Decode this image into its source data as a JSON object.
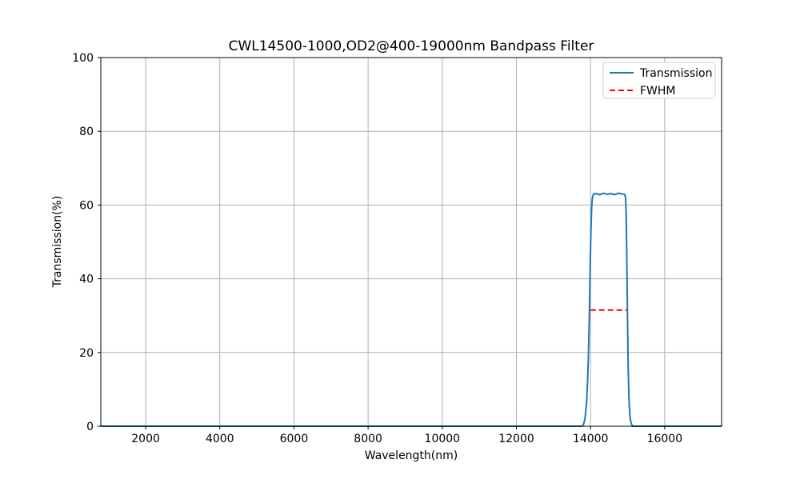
{
  "chart_data": {
    "type": "line",
    "title": "CWL14500-1000,OD2@400-19000nm Bandpass Filter",
    "xlabel": "Wavelength(nm)",
    "ylabel": "Transmission(%)",
    "xlim": [
      790,
      17535
    ],
    "ylim": [
      0,
      100
    ],
    "x_ticks": [
      2000,
      4000,
      6000,
      8000,
      10000,
      12000,
      14000,
      16000
    ],
    "y_ticks": [
      0,
      20,
      40,
      60,
      80,
      100
    ],
    "grid": true,
    "grid_color": "#b0b0b0",
    "spine_color": "#000000",
    "legend_position": "upper right",
    "series": [
      {
        "name": "Transmission",
        "color": "#1f77b4",
        "style": "solid",
        "points": [
          [
            790,
            0
          ],
          [
            6000,
            0
          ],
          [
            10000,
            0
          ],
          [
            13770,
            0
          ],
          [
            13810,
            0.5
          ],
          [
            13850,
            2
          ],
          [
            13890,
            6
          ],
          [
            13920,
            12
          ],
          [
            13945,
            20
          ],
          [
            13970,
            31.5
          ],
          [
            13990,
            43
          ],
          [
            14010,
            53
          ],
          [
            14030,
            59.5
          ],
          [
            14050,
            62
          ],
          [
            14080,
            63
          ],
          [
            14150,
            63.1
          ],
          [
            14250,
            62.8
          ],
          [
            14350,
            63.2
          ],
          [
            14450,
            62.9
          ],
          [
            14550,
            63.1
          ],
          [
            14650,
            62.8
          ],
          [
            14750,
            63.2
          ],
          [
            14850,
            63.0
          ],
          [
            14920,
            62.9
          ],
          [
            14945,
            62
          ],
          [
            14960,
            58
          ],
          [
            14975,
            48
          ],
          [
            14990,
            35
          ],
          [
            15000,
            27
          ],
          [
            15015,
            16
          ],
          [
            15035,
            8
          ],
          [
            15060,
            3
          ],
          [
            15090,
            1
          ],
          [
            15130,
            0
          ],
          [
            16000,
            0
          ],
          [
            17535,
            0
          ]
        ]
      },
      {
        "name": "FWHM",
        "color": "#ff0000",
        "style": "dashed",
        "points": [
          [
            13990,
            31.5
          ],
          [
            14985,
            31.5
          ]
        ]
      }
    ]
  }
}
